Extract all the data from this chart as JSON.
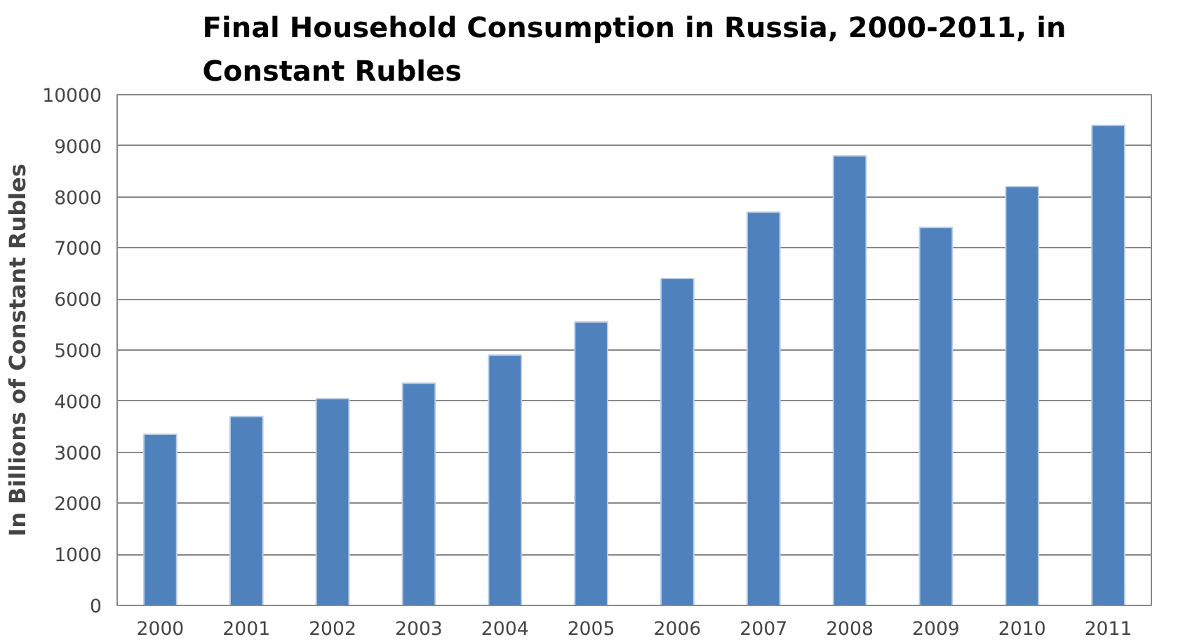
{
  "chart_data": {
    "type": "bar",
    "title": "Final Household Consumption in Russia, 2000-2011, in\nConstant Rubles",
    "ylabel": "In Billions of Constant Rubles",
    "categories": [
      "2000",
      "2001",
      "2002",
      "2003",
      "2004",
      "2005",
      "2006",
      "2007",
      "2008",
      "2009",
      "2010",
      "2011"
    ],
    "values": [
      3350,
      3700,
      4050,
      4350,
      4900,
      5550,
      6400,
      7700,
      8800,
      7400,
      8200,
      9400
    ],
    "color": "#4f81bd",
    "ylim": [
      0,
      10000
    ],
    "yticks": [
      0,
      1000,
      2000,
      3000,
      4000,
      5000,
      6000,
      7000,
      8000,
      9000,
      10000
    ],
    "grid": "y"
  }
}
